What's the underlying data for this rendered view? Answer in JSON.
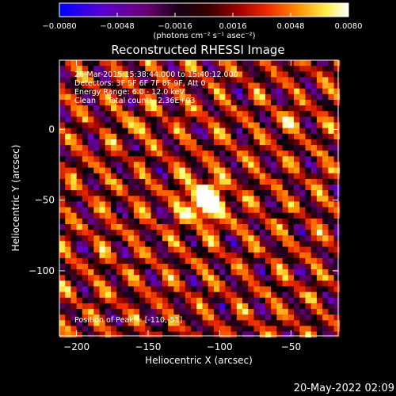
{
  "chart_data": {
    "type": "heatmap",
    "title": "Reconstructed RHESSI Image",
    "xlabel": "Heliocentric X (arcsec)",
    "ylabel": "Heliocentric Y (arcsec)",
    "xlim": [
      -212,
      -17
    ],
    "ylim": [
      -146,
      49
    ],
    "xticks": [
      -200,
      -150,
      -100,
      -50
    ],
    "yticks": [
      0,
      -50,
      -100
    ],
    "colormap": [
      "#0000ff",
      "#6a00c8",
      "#5a0058",
      "#000000",
      "#8a0000",
      "#ee2a00",
      "#ff8a00",
      "#ffff55",
      "#ffffff"
    ],
    "colorbar": {
      "min": -0.008,
      "max": 0.008,
      "ticks": [
        "-0.0080",
        "-0.0048",
        "-0.0016",
        "0.0016",
        "0.0048",
        "0.0080"
      ],
      "label": "(photons cm⁻² s⁻¹ asec⁻²)"
    },
    "annotations": [
      "26-Mar-2015 15:38:44.000 to 15:40:12.000",
      "Detectors: 3F 5F 6F 7F 8F 9F, Att 0",
      "Energy Range: 6.0 - 12.0 keV",
      "Clean     Total counts: 2.36E+03"
    ],
    "peak": {
      "label": "Position of Peak = [-110,-51]",
      "x": -110,
      "y": -51
    },
    "sources": [
      {
        "x": -112,
        "y": -51
      },
      {
        "x": -52,
        "y": 6
      },
      {
        "x": -160,
        "y": 3
      }
    ],
    "grid": false
  },
  "footer": {
    "date": "20-May-2022 02:09"
  }
}
